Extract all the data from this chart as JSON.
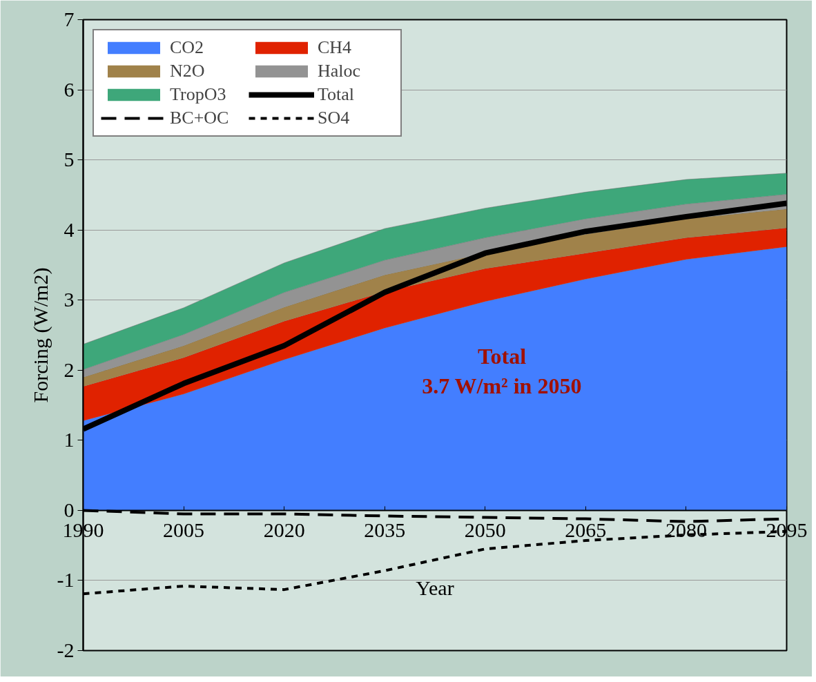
{
  "chart_data": {
    "type": "area",
    "stacked": true,
    "xlabel": "Year",
    "ylabel": "Forcing (W/m2)",
    "x": [
      1990,
      2005,
      2020,
      2035,
      2050,
      2065,
      2080,
      2095
    ],
    "xlim": [
      1990,
      2095
    ],
    "xticks": [
      1990,
      2005,
      2020,
      2035,
      2050,
      2065,
      2080,
      2095
    ],
    "ylim": [
      -2,
      7
    ],
    "yticks": [
      -2,
      -1,
      0,
      1,
      2,
      3,
      4,
      5,
      6,
      7
    ],
    "grid": "y",
    "legend": "top left",
    "annotations": [
      "Total",
      "3.7 W/m² in 2050"
    ],
    "series": [
      {
        "name": "CO2",
        "color": "#437eff",
        "values": [
          1.28,
          1.66,
          2.15,
          2.6,
          2.98,
          3.3,
          3.58,
          3.76
        ]
      },
      {
        "name": "CH4",
        "color": "#e02200",
        "values": [
          0.49,
          0.52,
          0.55,
          0.52,
          0.47,
          0.37,
          0.31,
          0.27
        ]
      },
      {
        "name": "N2O",
        "color": "#a0824a",
        "values": [
          0.13,
          0.17,
          0.2,
          0.24,
          0.22,
          0.27,
          0.27,
          0.27
        ]
      },
      {
        "name": "Haloc",
        "color": "#939393",
        "values": [
          0.11,
          0.16,
          0.21,
          0.21,
          0.22,
          0.22,
          0.21,
          0.21
        ]
      },
      {
        "name": "TropO3",
        "color": "#3ea77a",
        "values": [
          0.36,
          0.38,
          0.42,
          0.45,
          0.42,
          0.38,
          0.35,
          0.3
        ]
      },
      {
        "name": "Total",
        "type": "line",
        "line_style": "solid",
        "color": "#000000",
        "values": [
          1.16,
          1.81,
          2.35,
          3.11,
          3.67,
          3.98,
          4.19,
          4.38
        ]
      },
      {
        "name": "BC+OC",
        "type": "line",
        "line_style": "dashed",
        "color": "#000000",
        "values": [
          0.0,
          -0.05,
          -0.05,
          -0.08,
          -0.1,
          -0.12,
          -0.16,
          -0.12
        ]
      },
      {
        "name": "SO4",
        "type": "line",
        "line_style": "dotted",
        "color": "#000000",
        "values": [
          -1.19,
          -1.08,
          -1.13,
          -0.86,
          -0.55,
          -0.43,
          -0.35,
          -0.3
        ]
      }
    ]
  }
}
